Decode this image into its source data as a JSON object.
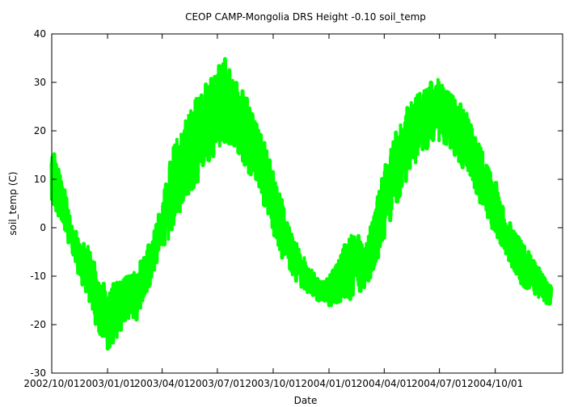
{
  "chart_data": {
    "type": "line",
    "title": "CEOP CAMP-Mongolia DRS Height -0.10 soil_temp",
    "xlabel": "Date",
    "ylabel": "soil_temp (C)",
    "ylim": [
      -30,
      40
    ],
    "yticks": [
      -30,
      -20,
      -10,
      0,
      10,
      20,
      30,
      40
    ],
    "x_range": [
      "2002-10-01",
      "2005-01-20"
    ],
    "xticks": [
      {
        "date": "2002-10-01",
        "label": "2002/10/01"
      },
      {
        "date": "2003-01-01",
        "label": "2003/01/01"
      },
      {
        "date": "2003-04-01",
        "label": "2003/04/01"
      },
      {
        "date": "2003-07-01",
        "label": "2003/07/01"
      },
      {
        "date": "2003-10-01",
        "label": "2003/10/01"
      },
      {
        "date": "2004-01-01",
        "label": "2004/01/01"
      },
      {
        "date": "2004-04-01",
        "label": "2004/04/01"
      },
      {
        "date": "2004-07-01",
        "label": "2004/07/01"
      },
      {
        "date": "2004-10-01",
        "label": "2004/10/01"
      }
    ],
    "grid": false,
    "line_color": "#00ff00",
    "series": [
      {
        "name": "soil_temp",
        "points": [
          {
            "date": "2002-10-01",
            "min": 4,
            "max": 17
          },
          {
            "date": "2002-10-10",
            "min": 3,
            "max": 13
          },
          {
            "date": "2002-10-20",
            "min": -1,
            "max": 9
          },
          {
            "date": "2002-11-01",
            "min": -4,
            "max": 2
          },
          {
            "date": "2002-11-15",
            "min": -10,
            "max": -2
          },
          {
            "date": "2002-12-01",
            "min": -15,
            "max": -4
          },
          {
            "date": "2002-12-15",
            "min": -21,
            "max": -9
          },
          {
            "date": "2003-01-01",
            "min": -25,
            "max": -13
          },
          {
            "date": "2003-01-15",
            "min": -23,
            "max": -11
          },
          {
            "date": "2003-02-01",
            "min": -19,
            "max": -10
          },
          {
            "date": "2003-02-15",
            "min": -20,
            "max": -9
          },
          {
            "date": "2003-03-01",
            "min": -15,
            "max": -6
          },
          {
            "date": "2003-03-15",
            "min": -11,
            "max": -2
          },
          {
            "date": "2003-04-01",
            "min": -4,
            "max": 5
          },
          {
            "date": "2003-04-15",
            "min": -2,
            "max": 14
          },
          {
            "date": "2003-05-01",
            "min": 3,
            "max": 22
          },
          {
            "date": "2003-05-15",
            "min": 7,
            "max": 24
          },
          {
            "date": "2003-06-01",
            "min": 10,
            "max": 28
          },
          {
            "date": "2003-06-15",
            "min": 13,
            "max": 30
          },
          {
            "date": "2003-07-01",
            "min": 16,
            "max": 33
          },
          {
            "date": "2003-07-15",
            "min": 18,
            "max": 35
          },
          {
            "date": "2003-08-01",
            "min": 16,
            "max": 30
          },
          {
            "date": "2003-08-15",
            "min": 13,
            "max": 28
          },
          {
            "date": "2003-09-01",
            "min": 9,
            "max": 22
          },
          {
            "date": "2003-09-15",
            "min": 5,
            "max": 18
          },
          {
            "date": "2003-10-01",
            "min": -1,
            "max": 12
          },
          {
            "date": "2003-10-15",
            "min": -6,
            "max": 6
          },
          {
            "date": "2003-11-01",
            "min": -10,
            "max": -1
          },
          {
            "date": "2003-11-15",
            "min": -12,
            "max": -5
          },
          {
            "date": "2003-12-01",
            "min": -14,
            "max": -8
          },
          {
            "date": "2003-12-15",
            "min": -15,
            "max": -11
          },
          {
            "date": "2004-01-01",
            "min": -16,
            "max": -10
          },
          {
            "date": "2004-01-15",
            "min": -16,
            "max": -7
          },
          {
            "date": "2004-02-01",
            "min": -15,
            "max": -2
          },
          {
            "date": "2004-02-15",
            "min": -14,
            "max": -1
          },
          {
            "date": "2004-03-01",
            "min": -12,
            "max": -4
          },
          {
            "date": "2004-03-15",
            "min": -9,
            "max": 3
          },
          {
            "date": "2004-04-01",
            "min": -2,
            "max": 12
          },
          {
            "date": "2004-04-15",
            "min": 3,
            "max": 18
          },
          {
            "date": "2004-05-01",
            "min": 8,
            "max": 23
          },
          {
            "date": "2004-05-15",
            "min": 12,
            "max": 26
          },
          {
            "date": "2004-06-01",
            "min": 15,
            "max": 28
          },
          {
            "date": "2004-06-15",
            "min": 17,
            "max": 30
          },
          {
            "date": "2004-07-01",
            "min": 18,
            "max": 31
          },
          {
            "date": "2004-07-15",
            "min": 17,
            "max": 28
          },
          {
            "date": "2004-08-01",
            "min": 14,
            "max": 26
          },
          {
            "date": "2004-08-15",
            "min": 11,
            "max": 24
          },
          {
            "date": "2004-09-01",
            "min": 7,
            "max": 18
          },
          {
            "date": "2004-09-15",
            "min": 2,
            "max": 14
          },
          {
            "date": "2004-10-01",
            "min": -1,
            "max": 10
          },
          {
            "date": "2004-10-15",
            "min": -5,
            "max": 4
          },
          {
            "date": "2004-11-01",
            "min": -9,
            "max": -1
          },
          {
            "date": "2004-11-15",
            "min": -12,
            "max": -3
          },
          {
            "date": "2004-12-01",
            "min": -13,
            "max": -6
          },
          {
            "date": "2004-12-15",
            "min": -15,
            "max": -9
          },
          {
            "date": "2005-01-01",
            "min": -16,
            "max": -12
          }
        ]
      }
    ]
  }
}
